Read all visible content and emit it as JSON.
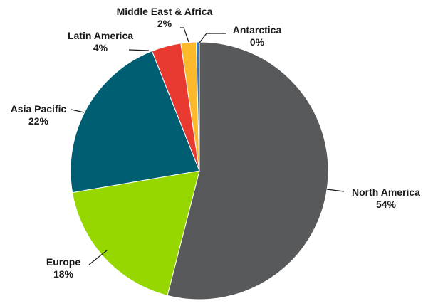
{
  "chart_data": {
    "type": "pie",
    "title": "",
    "slices": [
      {
        "name": "North America",
        "label": "54%",
        "value": 54.0,
        "color": "#58595b"
      },
      {
        "name": "Europe",
        "label": "18%",
        "value": 18.3,
        "color": "#97d700"
      },
      {
        "name": "Asia Pacific",
        "label": "22%",
        "value": 21.7,
        "color": "#005e73"
      },
      {
        "name": "Latin America",
        "label": "4%",
        "value": 3.7,
        "color": "#e83a30"
      },
      {
        "name": "Middle East & Africa",
        "label": "2%",
        "value": 1.9,
        "color": "#fbb92b"
      },
      {
        "name": "Antarctica",
        "label": "0%",
        "value": 0.4,
        "color": "#3778b8"
      }
    ],
    "start_angle_deg": 0,
    "direction": "clockwise",
    "legend": "none"
  }
}
